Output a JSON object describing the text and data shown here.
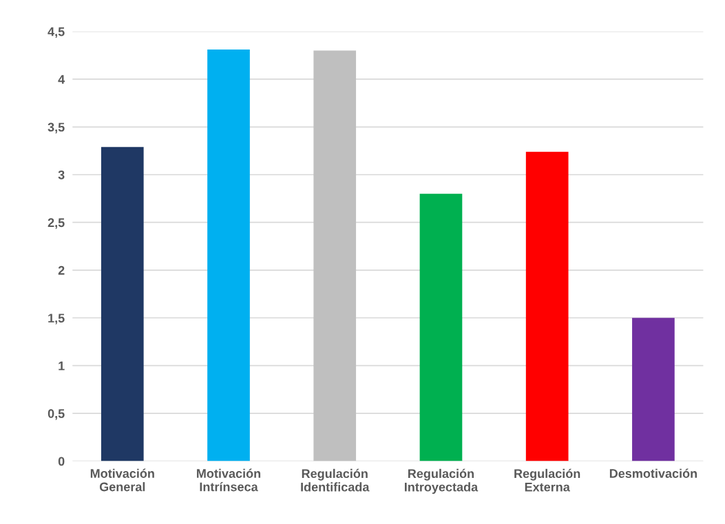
{
  "chart_data": {
    "type": "bar",
    "categories": [
      "Motivación\nGeneral",
      "Motivación\nIntrínseca",
      "Regulación\nIdentificada",
      "Regulación\nIntroyectada",
      "Regulación\nExterna",
      "Desmotivación"
    ],
    "values": [
      3.29,
      4.31,
      4.3,
      2.8,
      3.24,
      1.5
    ],
    "colors": [
      "#1f3864",
      "#00b0f0",
      "#bfbfbf",
      "#00b050",
      "#ff0000",
      "#7030a0"
    ],
    "ylim": [
      0,
      4.5
    ],
    "yticks": [
      0,
      {
        "value": 0.5,
        "label": "0,5"
      },
      1,
      {
        "value": 1.5,
        "label": "1,5"
      },
      2,
      {
        "value": 2.5,
        "label": "2,5"
      },
      3,
      {
        "value": 3.5,
        "label": "3,5"
      },
      4,
      {
        "value": 4.5,
        "label": "4,5"
      }
    ],
    "grid": "y",
    "legend": false
  }
}
